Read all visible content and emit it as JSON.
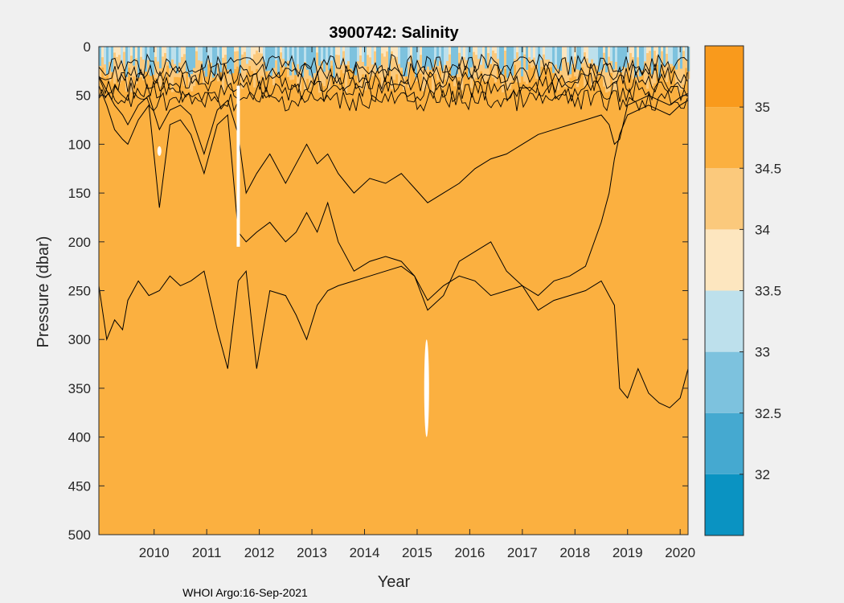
{
  "chart_data": {
    "type": "heatmap",
    "title": "3900742:  Salinity",
    "xlabel": "Year",
    "ylabel": "Pressure (dbar)",
    "x_ticks": [
      "2010",
      "2011",
      "2012",
      "2013",
      "2014",
      "2015",
      "2016",
      "2017",
      "2018",
      "2019",
      "2020"
    ],
    "xlim": [
      2009.45,
      2020.65
    ],
    "y_ticks": [
      "0",
      "50",
      "100",
      "150",
      "200",
      "250",
      "300",
      "350",
      "400",
      "450",
      "500"
    ],
    "ylim": [
      0,
      500
    ],
    "y_reversed": true,
    "colorbar": {
      "levels": [
        31.5,
        32,
        32.5,
        33,
        33.5,
        34,
        34.5,
        35,
        35.5
      ],
      "labels": [
        "32",
        "32.5",
        "33",
        "33.5",
        "34",
        "34.5",
        "35"
      ],
      "colors": [
        "#0a93c2",
        "#45a9d0",
        "#7dc2de",
        "#bde0ec",
        "#fde6bf",
        "#fbc97c",
        "#fbb040",
        "#f99a1c"
      ]
    },
    "contours_deep": {
      "x": [
        2009.45,
        2009.6,
        2009.75,
        2009.9,
        2010.0,
        2010.2,
        2010.4,
        2010.6,
        2010.8,
        2011.0,
        2011.2,
        2011.45,
        2011.7,
        2011.9,
        2012.1,
        2012.25,
        2012.45,
        2012.7,
        2013.0,
        2013.2,
        2013.4,
        2013.6,
        2013.8,
        2014.0,
        2014.3,
        2014.6,
        2014.9,
        2015.2,
        2015.45,
        2015.7,
        2016.0,
        2016.3,
        2016.6,
        2016.9,
        2017.2,
        2017.5,
        2017.8,
        2018.1,
        2018.4,
        2018.7,
        2019.0,
        2019.15,
        2019.25,
        2019.35,
        2019.5,
        2019.7,
        2019.9,
        2020.1,
        2020.3,
        2020.5,
        2020.65
      ],
      "series": [
        {
          "values": [
            245,
            300,
            280,
            290,
            260,
            240,
            255,
            250,
            235,
            245,
            240,
            230,
            290,
            330,
            240,
            230,
            330,
            250,
            255,
            275,
            300,
            265,
            250,
            245,
            240,
            235,
            230,
            225,
            235,
            260,
            245,
            235,
            240,
            255,
            250,
            245,
            270,
            260,
            255,
            250,
            240,
            255,
            265,
            350,
            360,
            330,
            355,
            365,
            370,
            360,
            330
          ]
        },
        {
          "values": [
            40,
            60,
            85,
            95,
            100,
            75,
            60,
            165,
            80,
            75,
            90,
            130,
            80,
            70,
            190,
            200,
            190,
            180,
            200,
            190,
            170,
            190,
            160,
            200,
            230,
            220,
            215,
            220,
            235,
            270,
            255,
            220,
            210,
            200,
            230,
            245,
            255,
            240,
            235,
            225,
            180,
            150,
            115,
            90,
            70,
            65,
            60,
            65,
            70,
            60,
            55
          ]
        },
        {
          "values": [
            30,
            45,
            60,
            70,
            80,
            60,
            50,
            85,
            65,
            60,
            70,
            110,
            65,
            55,
            90,
            150,
            130,
            110,
            140,
            120,
            100,
            120,
            110,
            130,
            150,
            135,
            140,
            130,
            145,
            160,
            150,
            140,
            125,
            115,
            110,
            100,
            90,
            85,
            80,
            75,
            70,
            80,
            100,
            95,
            60,
            55,
            50,
            55,
            60,
            52,
            48
          ]
        }
      ]
    },
    "white_gaps": [
      "2012.1",
      "2015.7"
    ],
    "footer": "WHOI Argo:16-Sep-2021"
  }
}
